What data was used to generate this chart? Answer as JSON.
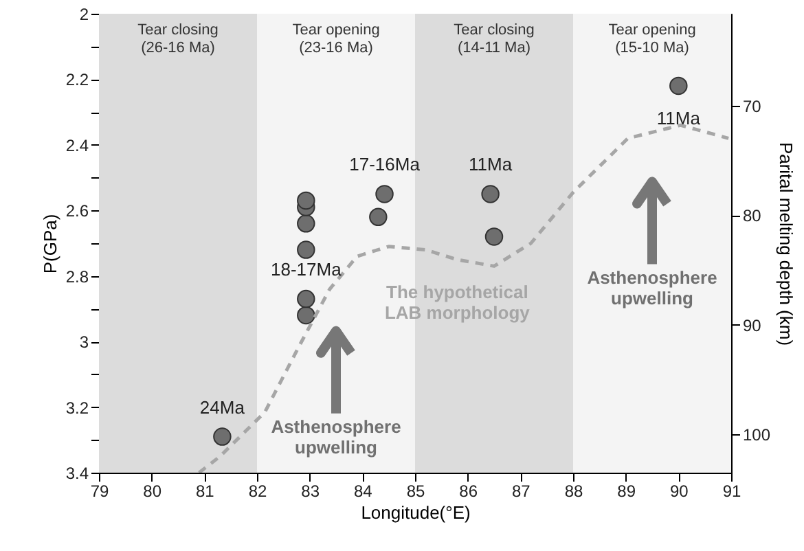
{
  "chart_data": {
    "type": "scatter",
    "xlabel": "Longitude(°E)",
    "ylabel": "P(GPa)",
    "y2label": "Parital melting depth (km)",
    "xlim": [
      79,
      91
    ],
    "xticks": [
      79,
      80,
      81,
      82,
      83,
      84,
      85,
      86,
      87,
      88,
      89,
      90,
      91
    ],
    "ylim": [
      3.4,
      2
    ],
    "yticks": [
      2,
      {
        "value": 2.1,
        "label": null
      },
      2.2,
      {
        "value": 2.3,
        "label": null
      },
      2.4,
      {
        "value": 2.5,
        "label": null
      },
      2.6,
      {
        "value": 2.7,
        "label": null
      },
      2.8,
      {
        "value": 2.9,
        "label": null
      },
      3,
      {
        "value": 3.1,
        "label": null
      },
      3.2,
      {
        "value": 3.3,
        "label": null
      },
      3.4
    ],
    "y2lim": [
      103.5,
      61.6
    ],
    "y2ticks": [
      70,
      80,
      90,
      100
    ],
    "grid": false,
    "series": [
      {
        "color": "#6e6e6e",
        "marker": "circle",
        "x": [
          81.34,
          82.93,
          82.93,
          82.93,
          82.93,
          82.93,
          82.93,
          84.3,
          84.42,
          86.43,
          86.5,
          90.0
        ],
        "values": [
          3.29,
          2.92,
          2.87,
          2.72,
          2.64,
          2.59,
          2.57,
          2.62,
          2.55,
          2.55,
          2.68,
          2.22
        ]
      },
      {
        "type": "line",
        "name": "The hypothetical LAB morphology",
        "color": "#a6a6a6",
        "line_style": "dashed",
        "marker": "none",
        "x": [
          80.9,
          81.3,
          82.15,
          82.78,
          83.38,
          83.9,
          84.5,
          85.2,
          85.8,
          86.5,
          87.2,
          88.0,
          89.04,
          90.04,
          90.95
        ],
        "values": [
          3.4,
          3.35,
          3.215,
          3.02,
          2.84,
          2.74,
          2.71,
          2.72,
          2.75,
          2.77,
          2.7,
          2.545,
          2.38,
          2.34,
          2.38
        ]
      }
    ],
    "bands": [
      {
        "axis": "x",
        "from": 79,
        "to": 82,
        "label": "Tear closing\n(26-16 Ma)",
        "color": "#dcdcdc"
      },
      {
        "axis": "x",
        "from": 82,
        "to": 85,
        "label": "Tear opening\n(23-16 Ma)",
        "color": "#f4f4f4"
      },
      {
        "axis": "x",
        "from": 85,
        "to": 88,
        "label": "Tear closing\n(14-11 Ma)",
        "color": "#dcdcdc"
      },
      {
        "axis": "x",
        "from": 88,
        "to": 91,
        "label": "Tear opening\n(15-10 Ma)",
        "color": "#f4f4f4"
      }
    ],
    "annotations": [
      {
        "text": "24Ma",
        "x": 81.34,
        "y": 3.29
      },
      {
        "text": "18-17Ma",
        "x": 82.93,
        "y": 2.87
      },
      {
        "text": "17-16Ma",
        "x": 84.42,
        "y": 2.55
      },
      {
        "text": "11Ma",
        "x": 86.43,
        "y": 2.55
      },
      {
        "text": "11Ma",
        "x": 90.0,
        "y": 2.22
      },
      "Asthenosphere\nupwelling",
      "Asthenosphere\nupwelling"
    ]
  }
}
